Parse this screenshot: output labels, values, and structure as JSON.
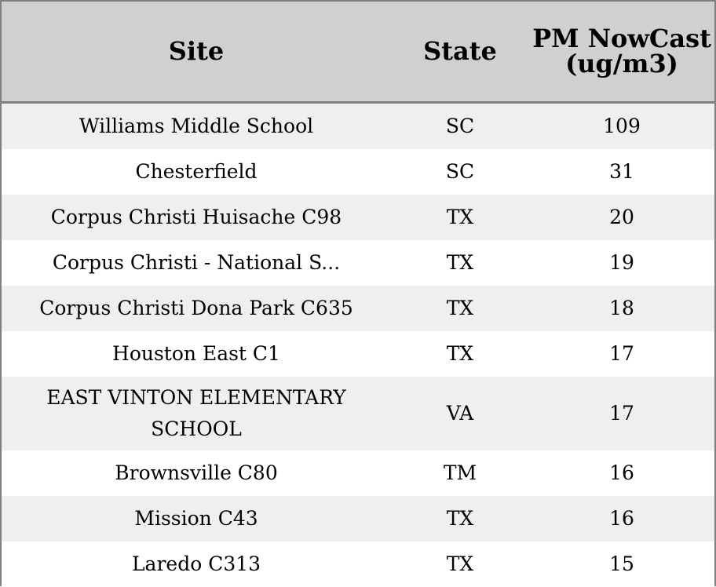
{
  "table": {
    "headers": {
      "site": "Site",
      "state": "State",
      "pm": "PM NowCast (ug/m3)"
    },
    "rows": [
      {
        "site": "Williams Middle School",
        "state": "SC",
        "pm": "109"
      },
      {
        "site": "Chesterfield",
        "state": "SC",
        "pm": "31"
      },
      {
        "site": "Corpus Christi Huisache C98",
        "state": "TX",
        "pm": "20"
      },
      {
        "site": "Corpus Christi - National S...",
        "state": "TX",
        "pm": "19"
      },
      {
        "site": "Corpus Christi Dona Park C635",
        "state": "TX",
        "pm": "18"
      },
      {
        "site": "Houston East C1",
        "state": "TX",
        "pm": "17"
      },
      {
        "site": "EAST VINTON ELEMENTARY SCHOOL",
        "state": "VA",
        "pm": "17"
      },
      {
        "site": "Brownsville C80",
        "state": "TM",
        "pm": "16"
      },
      {
        "site": "Mission C43",
        "state": "TX",
        "pm": "16"
      },
      {
        "site": "Laredo C313",
        "state": "TX",
        "pm": "15"
      }
    ]
  },
  "colors": {
    "header_bg": "#d0d0d0",
    "row_alt_bg": "#efefef",
    "border": "#808080"
  }
}
